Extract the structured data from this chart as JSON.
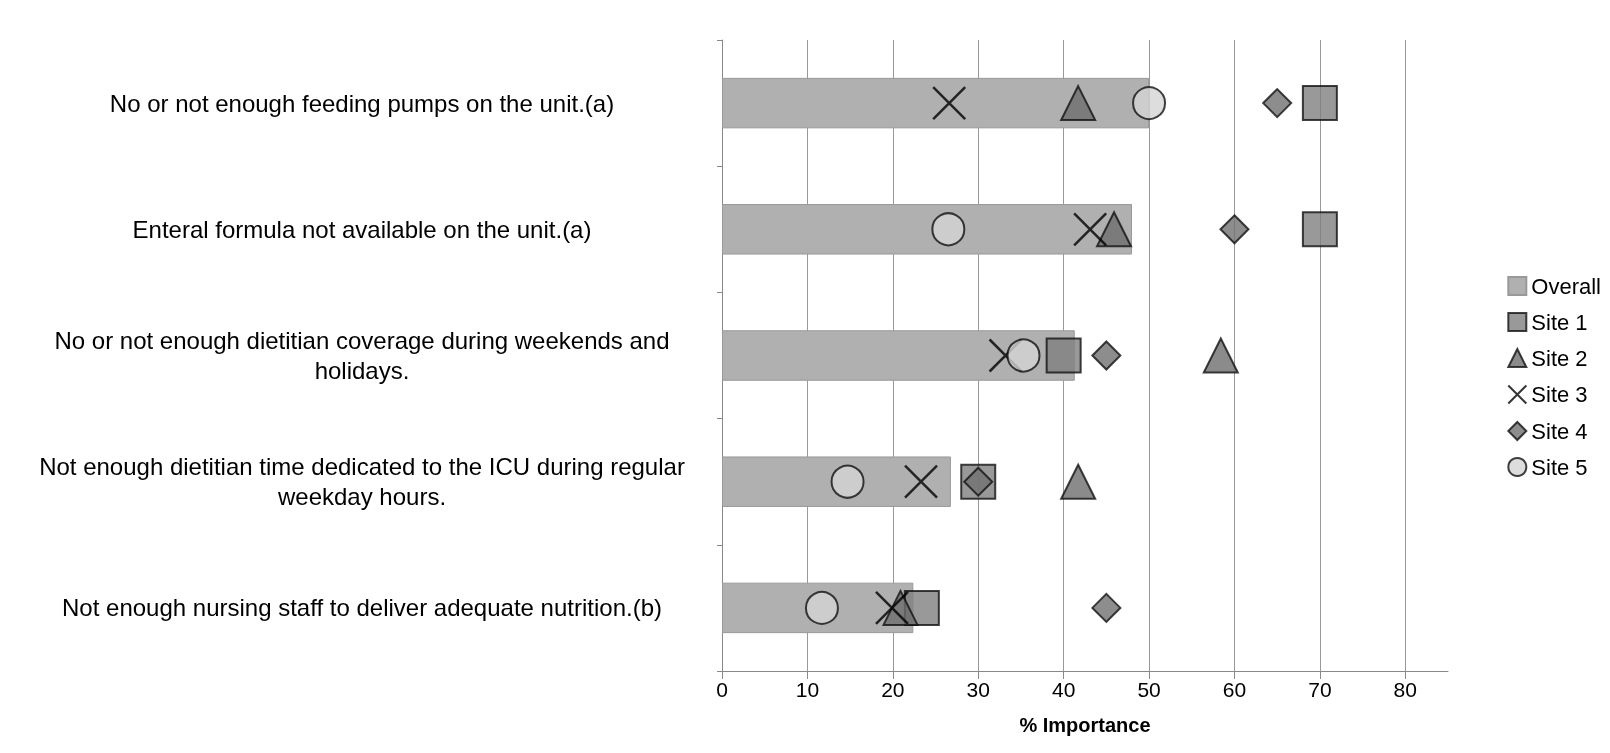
{
  "chart_data": {
    "type": "bar",
    "orientation": "horizontal",
    "xlabel": "% Importance",
    "categories": [
      "No or not enough feeding pumps on the unit.(a)",
      "Enteral formula not available on the unit.(a)",
      "No or not enough dietitian coverage during weekends and holidays.",
      "Not enough dietitian time dedicated to the ICU during regular weekday hours.",
      "Not enough nursing staff to deliver adequate nutrition.(b)"
    ],
    "series": [
      {
        "name": "Overall",
        "color": "#b0b0b0",
        "values": [
          50,
          48,
          41.3,
          26.8,
          22.4
        ]
      },
      {
        "name": "Site 1",
        "type": "scatter",
        "marker": "square",
        "color": "#808080",
        "values": [
          70,
          70,
          40,
          30,
          23.4
        ]
      },
      {
        "name": "Site 2",
        "type": "scatter",
        "marker": "triangle",
        "color": "#6e6e6e",
        "values": [
          41.7,
          45.9,
          58.4,
          41.7,
          20.9
        ]
      },
      {
        "name": "Site 3",
        "type": "scatter",
        "marker": "cross",
        "color": "#000000",
        "values": [
          26.6,
          43.1,
          33.2,
          23.3,
          19.9
        ]
      },
      {
        "name": "Site 4",
        "type": "scatter",
        "marker": "diamond",
        "color": "#707070",
        "values": [
          65,
          60,
          45,
          30,
          45
        ]
      },
      {
        "name": "Site 5",
        "type": "scatter",
        "marker": "circle",
        "color": "#d4d4d4",
        "values": [
          50,
          26.5,
          35.3,
          14.7,
          11.7
        ]
      }
    ],
    "xlim": [
      0,
      85
    ],
    "xticks": [
      0,
      10,
      20,
      30,
      40,
      50,
      60,
      70,
      80
    ],
    "grid": "x",
    "legend": "right"
  }
}
